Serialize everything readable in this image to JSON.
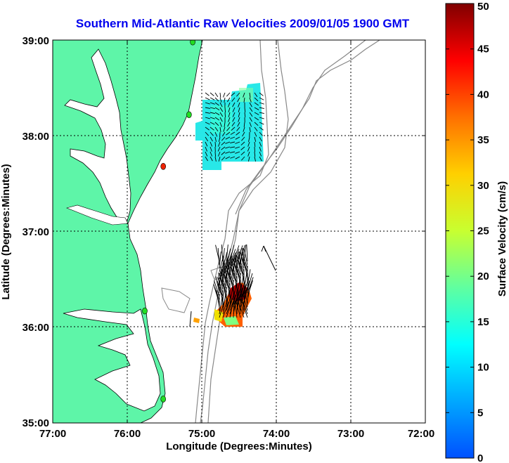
{
  "title": "Southern Mid-Atlantic Raw Velocities 2009/01/05 1900 GMT",
  "x_axis": {
    "label": "Longitude (Degrees:Minutes)",
    "ticks": [
      "77:00",
      "76:00",
      "75:00",
      "74:00",
      "73:00",
      "72:00"
    ]
  },
  "y_axis": {
    "label": "Latitude (Degrees:Minutes)",
    "ticks": [
      "39:00",
      "38:00",
      "37:00",
      "36:00",
      "35:00"
    ]
  },
  "colorbar": {
    "label": "Surface Velocity (cm/s)",
    "ticks": [
      "50",
      "45",
      "40",
      "35",
      "30",
      "25",
      "20",
      "15",
      "10",
      "5",
      "0"
    ],
    "min": 0,
    "max": 50
  },
  "colors": {
    "land": "#5ef5a8",
    "bathymetry": "#888888",
    "title": "#0000ee",
    "station": "#22dd22",
    "station_alert": "#ee2200"
  },
  "map": {
    "lon_range": [
      -77,
      -72
    ],
    "lat_range": [
      35,
      39
    ],
    "grid": true,
    "stations": [
      {
        "lon": -75.1,
        "lat": 38.98,
        "status": "ok"
      },
      {
        "lon": -75.15,
        "lat": 38.22,
        "status": "ok"
      },
      {
        "lon": -75.5,
        "lat": 37.68,
        "status": "alert"
      },
      {
        "lon": -75.75,
        "lat": 36.17,
        "status": "ok"
      },
      {
        "lon": -75.5,
        "lat": 35.25,
        "status": "ok"
      }
    ]
  }
}
